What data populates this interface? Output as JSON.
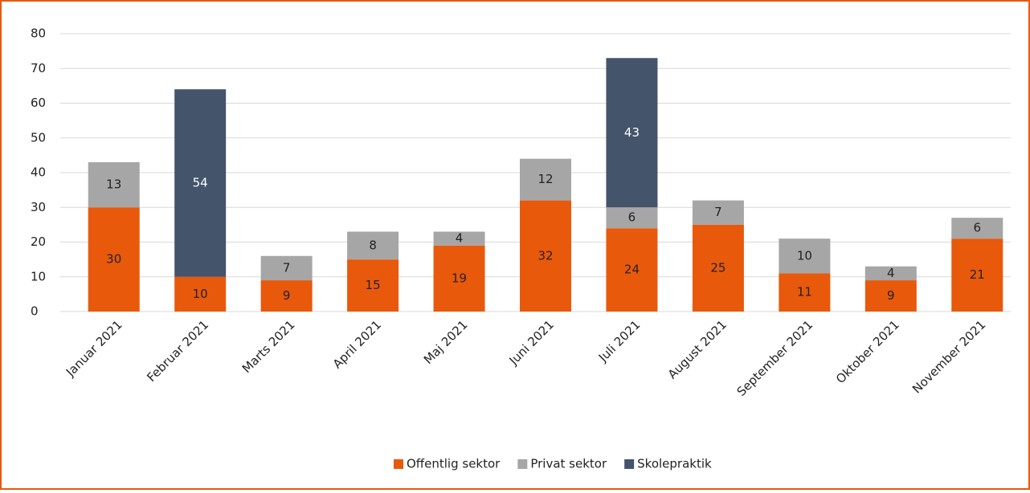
{
  "chart_data": {
    "type": "stacked_bar",
    "categories": [
      "Januar 2021",
      "Februar 2021",
      "Marts 2021",
      "April 2021",
      "Maj 2021",
      "Juni 2021",
      "Juli 2021",
      "August 2021",
      "September 2021",
      "Oktober 2021",
      "November 2021"
    ],
    "series": [
      {
        "name": "Offentlig sektor",
        "color": "#e8590c",
        "values": [
          30,
          10,
          9,
          15,
          19,
          32,
          24,
          25,
          11,
          9,
          21
        ]
      },
      {
        "name": "Privat sektor",
        "color": "#a6a6a6",
        "values": [
          13,
          null,
          7,
          8,
          4,
          12,
          6,
          7,
          10,
          4,
          6
        ]
      },
      {
        "name": "Skolepraktik",
        "color": "#44546a",
        "values": [
          null,
          54,
          null,
          null,
          null,
          null,
          43,
          null,
          null,
          null,
          null
        ]
      }
    ],
    "ylim": [
      0,
      80
    ],
    "yticks": [
      0,
      10,
      20,
      30,
      40,
      50,
      60,
      70,
      80
    ],
    "grid": true,
    "legend": "bottom"
  }
}
